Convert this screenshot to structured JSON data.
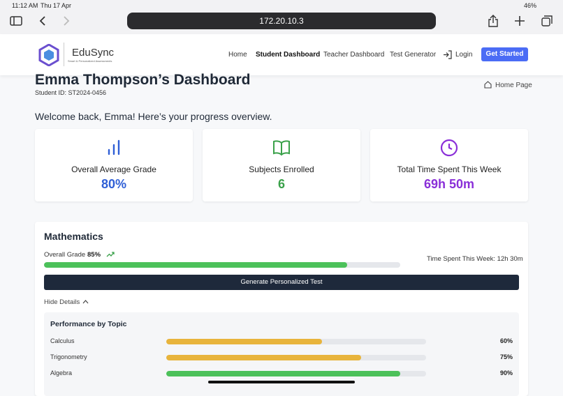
{
  "status_bar": {
    "time": "11:12 AM",
    "date": "Thu 17 Apr",
    "battery": "46%"
  },
  "browser": {
    "url": "172.20.10.3"
  },
  "nav": {
    "brand": "EduSync",
    "tagline": "Smart & Personalized Assessments",
    "links": [
      "Home",
      "Student Dashboard",
      "Teacher Dashboard",
      "Test Generator"
    ],
    "login": "Login",
    "cta": "Get Started"
  },
  "header": {
    "title": "Emma Thompson’s Dashboard",
    "student_id": "Student ID: ST2024-0456",
    "home_link": "Home Page",
    "welcome": "Welcome back, Emma! Here’s your progress overview."
  },
  "stats": [
    {
      "label": "Overall Average Grade",
      "value": "80%",
      "color": "#2f5fd6"
    },
    {
      "label": "Subjects Enrolled",
      "value": "6",
      "color": "#3aa14a"
    },
    {
      "label": "Total Time Spent This Week",
      "value": "69h 50m",
      "color": "#8a2fd8"
    }
  ],
  "subject": {
    "name": "Mathematics",
    "grade_label": "Overall Grade",
    "grade": "85%",
    "grade_color": "#4cc15a",
    "time_spent": "Time Spent This Week: 12h 30m",
    "button": "Generate Personalized Test",
    "toggle": "Hide Details",
    "topics_title": "Performance by Topic",
    "topics": [
      {
        "name": "Calculus",
        "value": "60%",
        "color": "#e8b43c"
      },
      {
        "name": "Trigonometry",
        "value": "75%",
        "color": "#e8b43c"
      },
      {
        "name": "Algebra",
        "value": "90%",
        "color": "#4cc15a"
      }
    ]
  }
}
